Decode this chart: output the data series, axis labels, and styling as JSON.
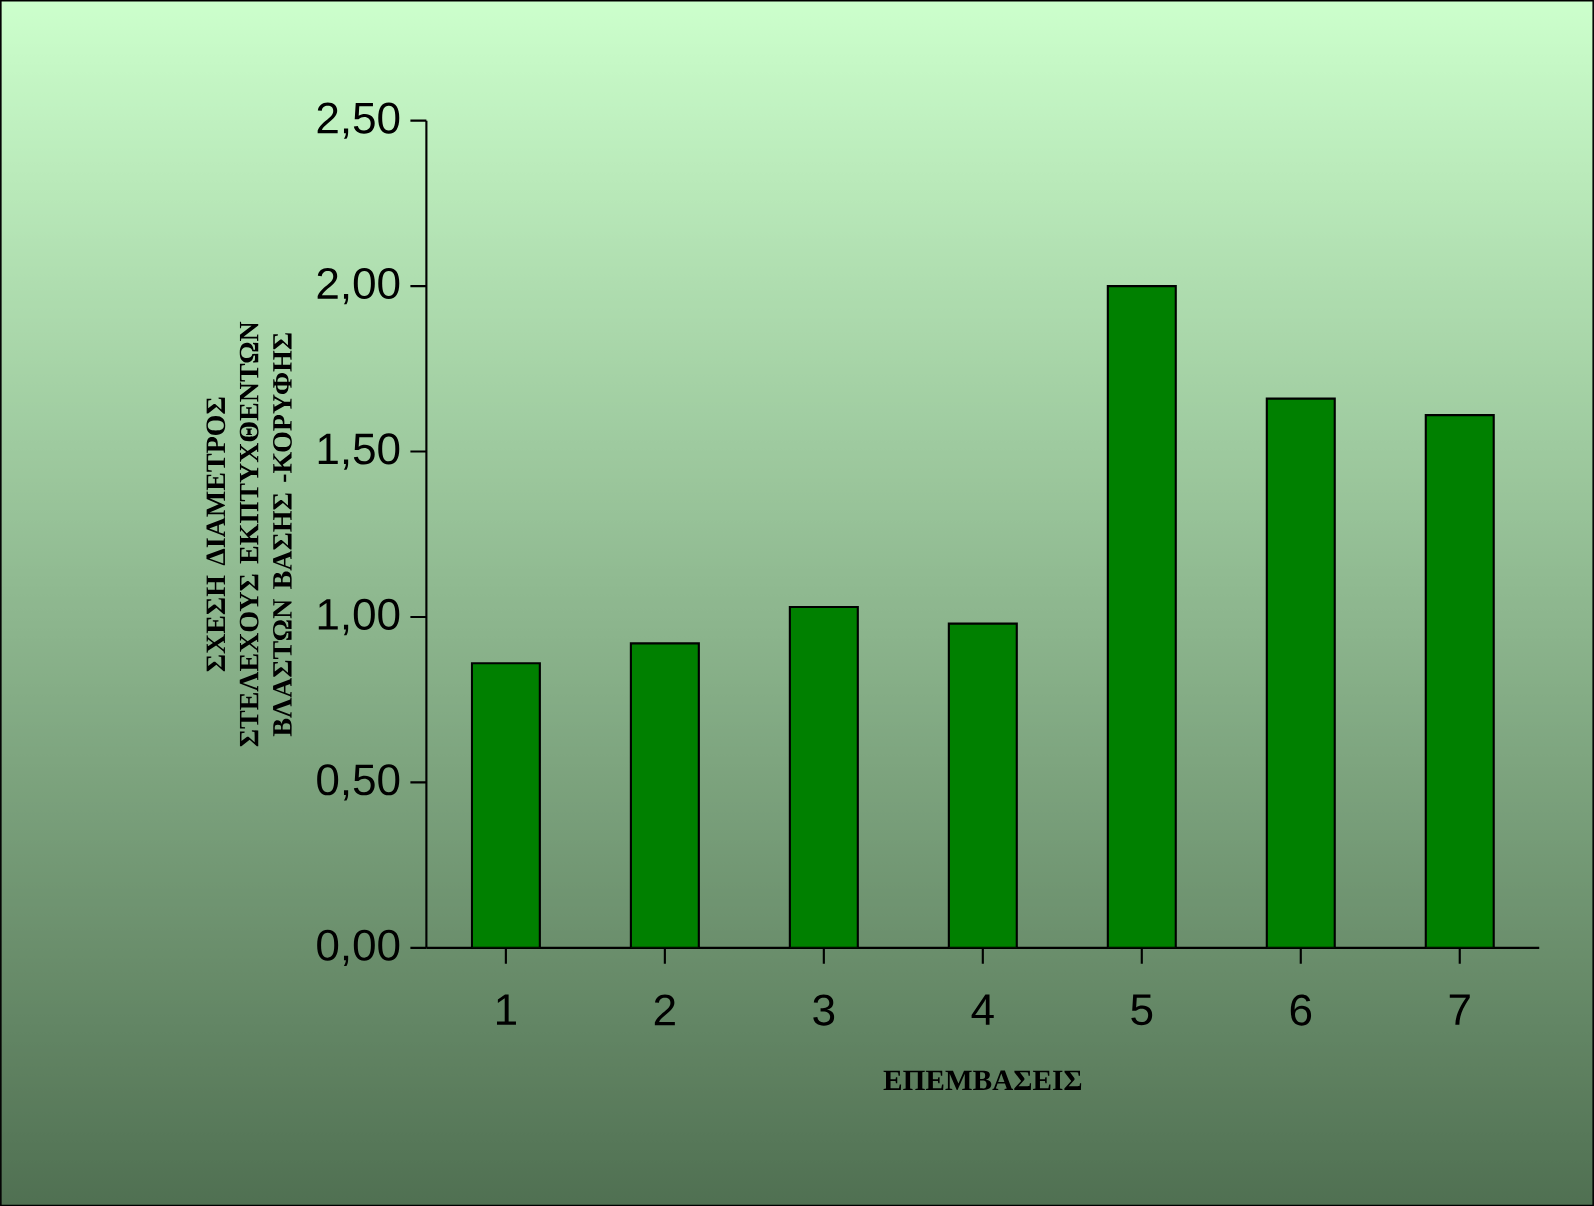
{
  "chart_data": {
    "type": "bar",
    "xlabel": "ΕΠΕΜΒΑΣΕΙΣ",
    "ylabel": "ΣΧΕΣΗ ΔΙΑΜΕΤΡΟΣ ΣΤΕΛΕΧΟΥΣ ΕΚΠΤΥΧΘΕΝΤΩΝ ΒΛΑΣΤΩΝ ΒΑΣΗΣ -ΚΟΡΥΦΗΣ",
    "categories": [
      "1",
      "2",
      "3",
      "4",
      "5",
      "6",
      "7"
    ],
    "values": [
      0.86,
      0.92,
      1.03,
      0.98,
      2.0,
      1.66,
      1.61
    ],
    "color": "#008000",
    "ylim": [
      0,
      2.5
    ],
    "yticks": [
      {
        "value": 0,
        "label": "0,00"
      },
      {
        "value": 0.5,
        "label": "0,50"
      },
      {
        "value": 1,
        "label": "1,00"
      },
      {
        "value": 1.5,
        "label": "1,50"
      },
      {
        "value": 2,
        "label": "2,00"
      },
      {
        "value": 2.5,
        "label": "2,50"
      }
    ]
  }
}
